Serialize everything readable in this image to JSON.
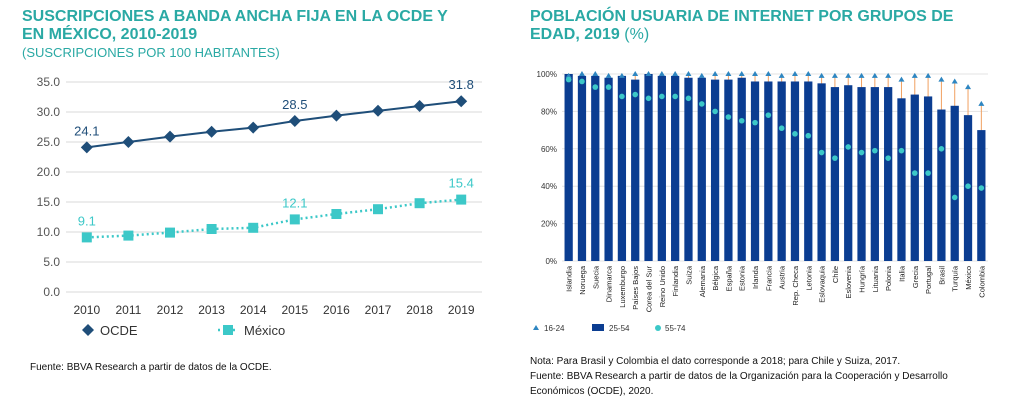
{
  "left": {
    "title_line1": "SUSCRIPCIONES A BANDA ANCHA FIJA EN LA OCDE Y",
    "title_line2": "EN MÉXICO, 2010-2019",
    "subtitle": "(SUSCRIPCIONES POR 100 HABITANTES)",
    "source": "Fuente: BBVA Research a partir de datos de la OCDE."
  },
  "right": {
    "title_line1": "POBLACIÓN USUARIA DE INTERNET POR GRUPOS DE",
    "title_line2": "EDAD, 2019",
    "title_unit": "(%)",
    "note": "Nota: Para Brasil y Colombia el dato corresponde a 2018; para Chile y Suiza, 2017.",
    "source_line1": "Fuente: BBVA Research a partir de datos de la Organización para la Cooperación y Desarrollo",
    "source_line2": "Económicos (OCDE), 2020."
  },
  "colors": {
    "ocde": "#1f4e79",
    "mexico": "#3cc8c8",
    "bar": "#0b3d91",
    "age_16_24": "#2e86c1",
    "age_55_74": "#3cc8c8",
    "range_line": "#f0a060",
    "title": "#2aa9a4"
  },
  "chart_data": [
    {
      "type": "line",
      "x": [
        "2010",
        "2011",
        "2012",
        "2013",
        "2014",
        "2015",
        "2016",
        "2017",
        "2018",
        "2019"
      ],
      "series": [
        {
          "name": "OCDE",
          "values": [
            24.1,
            25.0,
            25.9,
            26.7,
            27.4,
            28.5,
            29.4,
            30.2,
            31.0,
            31.8
          ]
        },
        {
          "name": "México",
          "values": [
            9.1,
            9.4,
            9.9,
            10.5,
            10.7,
            12.1,
            13.0,
            13.8,
            14.8,
            15.4
          ]
        }
      ],
      "data_labels": [
        {
          "series": "OCDE",
          "x": "2010",
          "text": "24.1"
        },
        {
          "series": "OCDE",
          "x": "2015",
          "text": "28.5"
        },
        {
          "series": "OCDE",
          "x": "2019",
          "text": "31.8"
        },
        {
          "series": "México",
          "x": "2010",
          "text": "9.1"
        },
        {
          "series": "México",
          "x": "2015",
          "text": "12.1"
        },
        {
          "series": "México",
          "x": "2019",
          "text": "15.4"
        }
      ],
      "yticks": [
        "0.0",
        "5.0",
        "10.0",
        "15.0",
        "20.0",
        "25.0",
        "30.0",
        "35.0"
      ],
      "ylim": [
        0,
        35
      ],
      "grid": true,
      "legend": "bottom-left"
    },
    {
      "type": "bar",
      "categories": [
        "Islandia",
        "Noruega",
        "Suecia",
        "Dinamarca",
        "Luxemburgo",
        "Países Bajos",
        "Corea del Sur",
        "Reino Unido",
        "Finlandia",
        "Suiza",
        "Alemania",
        "Bélgica",
        "España",
        "Estonia",
        "Irlanda",
        "Francia",
        "Austria",
        "Rep. Checa",
        "Letonia",
        "Eslovaquia",
        "Chile",
        "Eslovenia",
        "Hungría",
        "Lituania",
        "Polonia",
        "Italia",
        "Grecia",
        "Portugal",
        "Brasil",
        "Turquía",
        "México",
        "Colombia"
      ],
      "series": [
        {
          "name": "25-54",
          "values": [
            100,
            99,
            99,
            98,
            99,
            97,
            100,
            99,
            99,
            98,
            98,
            97,
            97,
            98,
            96,
            96,
            96,
            96,
            96,
            95,
            93,
            94,
            93,
            93,
            93,
            87,
            89,
            88,
            81,
            83,
            78,
            70
          ]
        },
        {
          "name": "16-24",
          "values": [
            99,
            100,
            100,
            99,
            99,
            100,
            100,
            100,
            100,
            100,
            99,
            100,
            100,
            100,
            100,
            100,
            99,
            100,
            100,
            99,
            99,
            99,
            99,
            99,
            99,
            97,
            99,
            99,
            97,
            96,
            93,
            84
          ]
        },
        {
          "name": "55-74",
          "values": [
            97,
            96,
            93,
            93,
            88,
            89,
            87,
            88,
            88,
            87,
            84,
            80,
            77,
            75,
            74,
            78,
            71,
            68,
            67,
            58,
            55,
            61,
            58,
            59,
            55,
            59,
            47,
            47,
            60,
            34,
            40,
            39
          ]
        }
      ],
      "yticks": [
        "0%",
        "20%",
        "40%",
        "60%",
        "80%",
        "100%"
      ],
      "ylim": [
        0,
        100
      ],
      "grid": true,
      "legend": "bottom"
    }
  ]
}
